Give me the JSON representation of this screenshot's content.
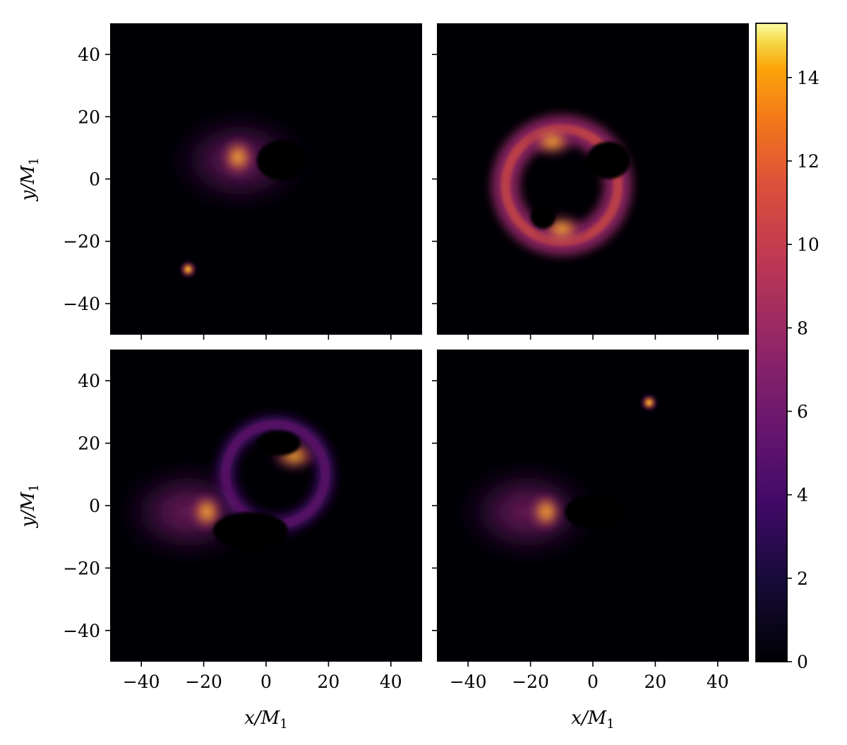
{
  "chart_data": {
    "type": "heatmap",
    "layout": "2x2 grid with shared colorbar",
    "xlabel": "x/M",
    "xlabel_sub": "1",
    "ylabel": "y/M",
    "ylabel_sub": "1",
    "xlim": [
      -50,
      50
    ],
    "ylim": [
      -50,
      50
    ],
    "xticks": [
      -40,
      -20,
      0,
      20,
      40
    ],
    "yticks": [
      -40,
      -20,
      0,
      20,
      40
    ],
    "colormap": "inferno",
    "colorbar": {
      "range": [
        0,
        15.3
      ],
      "ticks": [
        0,
        2,
        4,
        6,
        8,
        10,
        12,
        14
      ]
    },
    "panels": [
      {
        "position": "top-left",
        "features": [
          {
            "kind": "crescent",
            "center": [
              4,
              5
            ],
            "bright_side": [
              -9,
              7
            ],
            "peak": 14
          },
          {
            "kind": "shadow",
            "center": [
              5,
              6
            ],
            "size": [
              16,
              13
            ]
          },
          {
            "kind": "spot",
            "center": [
              -25,
              -29
            ],
            "peak": 13
          }
        ]
      },
      {
        "position": "top-right",
        "features": [
          {
            "kind": "ring",
            "center": [
              -10,
              -2
            ],
            "radius": 18,
            "peak": 14
          },
          {
            "kind": "shadow",
            "center": [
              5,
              6
            ],
            "size": [
              14,
              12
            ]
          },
          {
            "kind": "shadow",
            "center": [
              -16,
              -12
            ],
            "size": [
              8,
              8
            ]
          },
          {
            "kind": "hotspot",
            "center": [
              -13,
              12
            ],
            "peak": 14
          },
          {
            "kind": "hotspot",
            "center": [
              -10,
              -16
            ],
            "peak": 13
          }
        ]
      },
      {
        "position": "bottom-left",
        "features": [
          {
            "kind": "crescent",
            "center": [
              -19,
              -2
            ],
            "peak": 14
          },
          {
            "kind": "ring",
            "center": [
              3,
              10
            ],
            "radius": 16,
            "peak": 5
          },
          {
            "kind": "shadow",
            "center": [
              -5,
              -8
            ],
            "size": [
              24,
              12
            ]
          },
          {
            "kind": "shadow",
            "center": [
              4,
              20
            ],
            "size": [
              14,
              8
            ]
          },
          {
            "kind": "hotspot",
            "center": [
              9,
              16
            ],
            "peak": 12
          }
        ]
      },
      {
        "position": "bottom-right",
        "features": [
          {
            "kind": "crescent",
            "center": [
              -15,
              -2
            ],
            "peak": 14
          },
          {
            "kind": "shadow",
            "center": [
              0,
              -2
            ],
            "size": [
              18,
              11
            ]
          },
          {
            "kind": "spot",
            "center": [
              18,
              33
            ],
            "peak": 13
          }
        ]
      }
    ]
  }
}
